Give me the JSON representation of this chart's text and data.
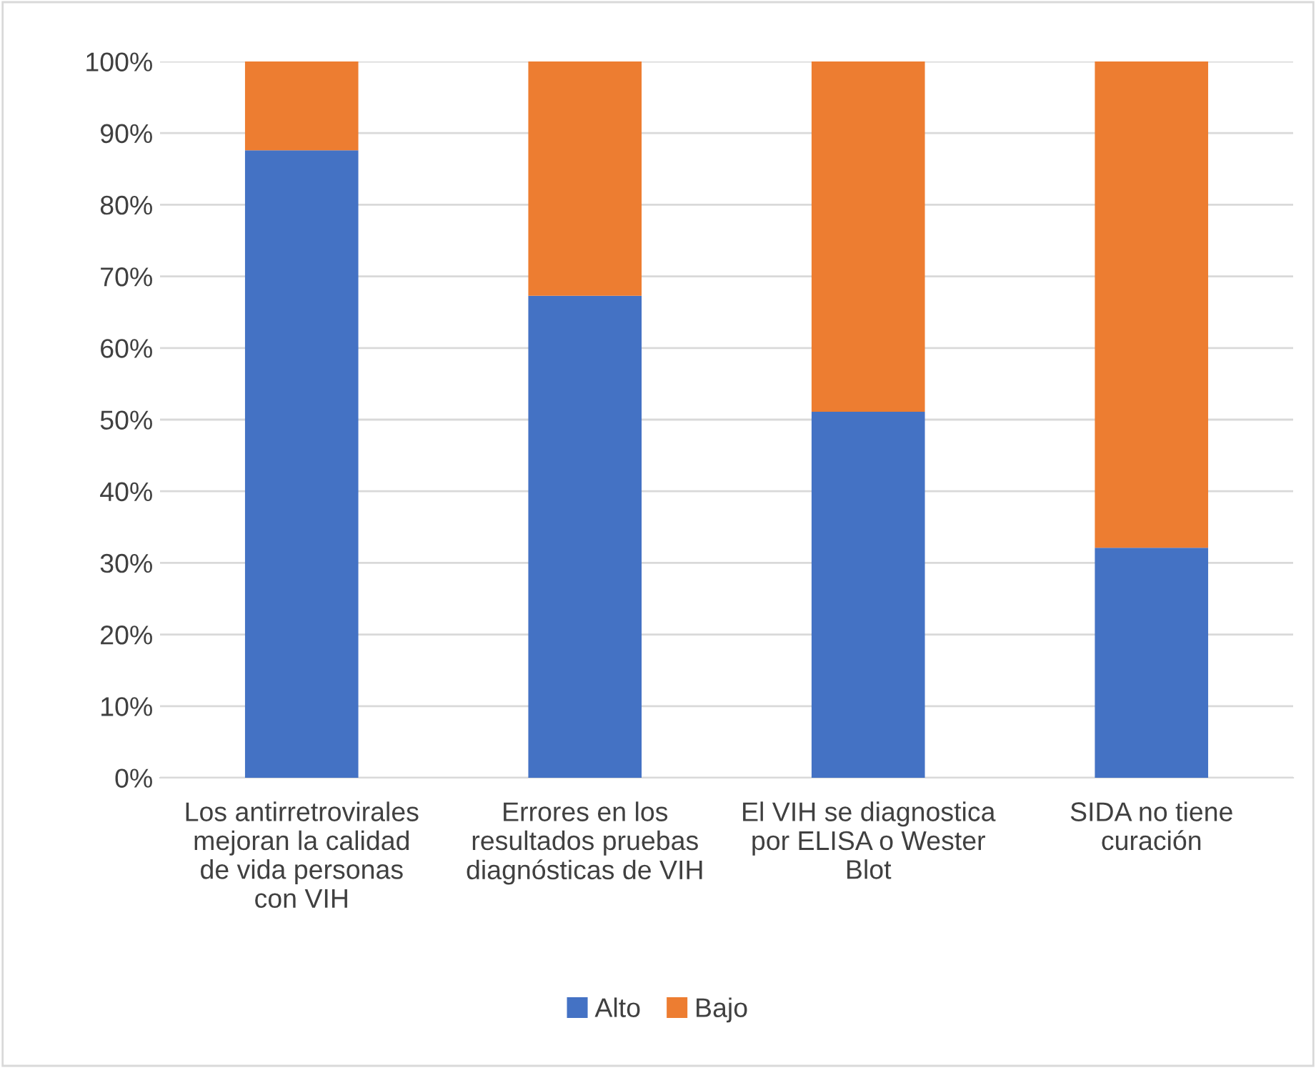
{
  "chart_data": {
    "type": "bar",
    "stacked": true,
    "categories": [
      "Los antirretrovirales\nmejoran la calidad\nde vida personas\ncon VIH",
      "Errores en los\nresultados pruebas\ndiagnósticas de VIH",
      "El VIH se diagnostica\npor ELISA o Wester\nBlot",
      "SIDA no tiene\ncuración"
    ],
    "series": [
      {
        "name": "Alto",
        "color": "#4472c4",
        "values": [
          87.6,
          67.3,
          51.1,
          32.1
        ]
      },
      {
        "name": "Bajo",
        "color": "#ed7d31",
        "values": [
          12.4,
          32.7,
          48.9,
          67.9
        ]
      }
    ],
    "ylim": [
      0,
      100
    ],
    "yticks": [
      {
        "value": 0,
        "label": "0%"
      },
      {
        "value": 10,
        "label": "10%"
      },
      {
        "value": 20,
        "label": "20%"
      },
      {
        "value": 30,
        "label": "30%"
      },
      {
        "value": 40,
        "label": "40%"
      },
      {
        "value": 50,
        "label": "50%"
      },
      {
        "value": 60,
        "label": "60%"
      },
      {
        "value": 70,
        "label": "70%"
      },
      {
        "value": 80,
        "label": "80%"
      },
      {
        "value": 90,
        "label": "90%"
      },
      {
        "value": 100,
        "label": "100%"
      }
    ],
    "grid": "y",
    "legend": "bottom"
  }
}
